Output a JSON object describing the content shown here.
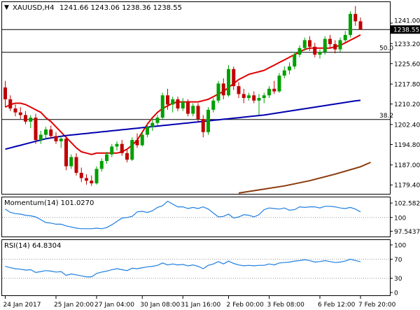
{
  "header": {
    "symbol": "XAUUSD,H4",
    "ohlc": "1241.66 1243.06 1238.36 1238.55"
  },
  "colors": {
    "bull": "#00a000",
    "bear": "#c00000",
    "sma_fast": "#e00000",
    "sma_mid": "#0000b0",
    "sma_slow": "#8b3a0a",
    "indicator": "#1e7fe0",
    "level": "#000000",
    "grid": "#d8d8d8"
  },
  "chart_data": [
    {
      "type": "candlestick",
      "panel": "price",
      "ylim": [
        1176,
        1249
      ],
      "y_ticks": [
        1241.0,
        1233.2,
        1225.6,
        1217.8,
        1210.2,
        1202.4,
        1194.8,
        1187.0,
        1179.4
      ],
      "y_tick_labels": [
        "1241.00",
        "1233.20",
        "1225.60",
        "1217.80",
        "1210.20",
        "1202.40",
        "1194.80",
        "1187.00",
        "1179.40"
      ],
      "current_price": "1238.55",
      "levels": [
        {
          "value": 1238.55,
          "label": ""
        },
        {
          "value": 1229.9,
          "label": "50.0"
        },
        {
          "value": 1204.3,
          "label": "38.2"
        }
      ],
      "x_labels": [
        "24 Jan 2017",
        "25 Jan 20:00",
        "27 Jan 04:00",
        "30 Jan 08:00",
        "31 Jan 16:00",
        "2 Feb 00:00",
        "3 Feb 08:00",
        "6 Feb 12:00",
        "7 Feb 20:00"
      ],
      "x_label_bars": [
        0,
        10,
        18,
        27,
        35,
        44,
        52,
        62,
        70
      ],
      "candles": [
        [
          1216.5,
          1219.0,
          1209.0,
          1212.0
        ],
        [
          1212.0,
          1213.5,
          1207.5,
          1208.5
        ],
        [
          1208.5,
          1210.0,
          1205.5,
          1207.0
        ],
        [
          1207.0,
          1209.0,
          1204.5,
          1206.0
        ],
        [
          1206.0,
          1207.5,
          1202.5,
          1203.5
        ],
        [
          1203.5,
          1206.0,
          1201.0,
          1205.0
        ],
        [
          1205.0,
          1206.5,
          1195.0,
          1196.5
        ],
        [
          1196.5,
          1200.0,
          1195.0,
          1198.5
        ],
        [
          1198.5,
          1201.5,
          1197.0,
          1200.5
        ],
        [
          1200.5,
          1202.0,
          1197.0,
          1198.0
        ],
        [
          1198.0,
          1199.5,
          1195.0,
          1196.0
        ],
        [
          1196.0,
          1198.0,
          1193.5,
          1197.0
        ],
        [
          1197.0,
          1197.5,
          1185.0,
          1186.5
        ],
        [
          1186.5,
          1191.0,
          1185.5,
          1190.0
        ],
        [
          1190.0,
          1191.5,
          1183.0,
          1184.0
        ],
        [
          1184.0,
          1186.0,
          1180.5,
          1182.0
        ],
        [
          1182.0,
          1183.5,
          1179.5,
          1181.0
        ],
        [
          1181.0,
          1183.0,
          1179.0,
          1180.0
        ],
        [
          1180.0,
          1186.5,
          1179.5,
          1185.5
        ],
        [
          1185.5,
          1189.5,
          1184.5,
          1188.5
        ],
        [
          1188.5,
          1192.0,
          1187.5,
          1191.0
        ],
        [
          1191.0,
          1195.0,
          1190.0,
          1194.0
        ],
        [
          1194.0,
          1196.0,
          1192.5,
          1195.0
        ],
        [
          1195.0,
          1196.5,
          1190.5,
          1191.5
        ],
        [
          1191.5,
          1193.0,
          1188.0,
          1189.0
        ],
        [
          1189.0,
          1197.5,
          1188.5,
          1196.5
        ],
        [
          1196.5,
          1199.0,
          1193.5,
          1194.5
        ],
        [
          1194.5,
          1199.5,
          1194.0,
          1198.5
        ],
        [
          1198.5,
          1203.0,
          1197.5,
          1201.5
        ],
        [
          1201.5,
          1204.5,
          1200.0,
          1203.0
        ],
        [
          1203.0,
          1206.0,
          1202.0,
          1205.0
        ],
        [
          1205.0,
          1214.5,
          1204.5,
          1213.5
        ],
        [
          1213.5,
          1216.0,
          1208.0,
          1210.0
        ],
        [
          1210.0,
          1213.0,
          1207.0,
          1212.0
        ],
        [
          1212.0,
          1213.0,
          1207.5,
          1208.5
        ],
        [
          1208.5,
          1212.5,
          1207.5,
          1211.0
        ],
        [
          1211.0,
          1212.0,
          1205.5,
          1206.5
        ],
        [
          1206.5,
          1210.5,
          1205.5,
          1209.5
        ],
        [
          1209.5,
          1210.5,
          1203.5,
          1204.5
        ],
        [
          1204.5,
          1206.0,
          1197.5,
          1199.5
        ],
        [
          1199.5,
          1209.0,
          1198.5,
          1208.0
        ],
        [
          1208.0,
          1212.5,
          1207.0,
          1211.5
        ],
        [
          1211.5,
          1219.0,
          1210.5,
          1218.0
        ],
        [
          1218.0,
          1220.0,
          1212.0,
          1213.5
        ],
        [
          1213.5,
          1225.0,
          1213.0,
          1223.5
        ],
        [
          1223.5,
          1224.5,
          1215.5,
          1217.0
        ],
        [
          1217.0,
          1218.5,
          1212.5,
          1214.0
        ],
        [
          1214.0,
          1216.0,
          1210.5,
          1212.5
        ],
        [
          1212.5,
          1214.5,
          1211.5,
          1213.5
        ],
        [
          1213.5,
          1215.0,
          1210.5,
          1211.5
        ],
        [
          1211.5,
          1214.0,
          1206.0,
          1212.5
        ],
        [
          1212.5,
          1214.5,
          1210.5,
          1213.5
        ],
        [
          1213.5,
          1217.0,
          1212.5,
          1216.0
        ],
        [
          1216.0,
          1219.0,
          1214.0,
          1215.0
        ],
        [
          1215.0,
          1222.0,
          1214.5,
          1221.0
        ],
        [
          1221.0,
          1224.5,
          1220.0,
          1223.0
        ],
        [
          1223.0,
          1226.0,
          1221.5,
          1224.5
        ],
        [
          1224.5,
          1230.0,
          1223.5,
          1229.0
        ],
        [
          1229.0,
          1232.5,
          1228.0,
          1231.5
        ],
        [
          1231.5,
          1235.5,
          1230.5,
          1234.5
        ],
        [
          1234.5,
          1236.0,
          1230.5,
          1232.0
        ],
        [
          1232.0,
          1233.5,
          1228.0,
          1229.0
        ],
        [
          1229.0,
          1231.0,
          1227.5,
          1230.0
        ],
        [
          1230.0,
          1236.0,
          1229.0,
          1235.0
        ],
        [
          1235.0,
          1236.5,
          1231.5,
          1233.0
        ],
        [
          1233.0,
          1234.5,
          1229.5,
          1231.0
        ],
        [
          1231.0,
          1235.5,
          1230.0,
          1234.5
        ],
        [
          1234.5,
          1238.0,
          1233.5,
          1236.5
        ],
        [
          1236.5,
          1245.5,
          1235.5,
          1244.5
        ],
        [
          1244.5,
          1247.5,
          1240.0,
          1241.7
        ],
        [
          1241.7,
          1243.1,
          1238.4,
          1238.55
        ]
      ],
      "moving_averages": [
        {
          "role": "sma_fast",
          "values": [
            1209,
            1210,
            1210.5,
            1210.5,
            1210,
            1209,
            1208,
            1207,
            1205,
            1203.5,
            1201.5,
            1199.5,
            1197.5,
            1195.5,
            1193.5,
            1192,
            1191.5,
            1191,
            1191.5,
            1191.5,
            1191.5,
            1191.5,
            1191.5,
            1192,
            1193,
            1194.5,
            1196.5,
            1199.5,
            1202.5,
            1205,
            1207,
            1208.5,
            1209.5,
            1210.5,
            1211,
            1211,
            1211,
            1211,
            1211,
            1211.5,
            1212,
            1213,
            1214,
            1215,
            1216.5,
            1218,
            1219.5,
            1220.5,
            1221.5,
            1222,
            1222.5,
            1223,
            1224,
            1225,
            1226,
            1227,
            1228,
            1229,
            1230,
            1231,
            1231.5,
            1231.5,
            1231.5,
            1231.5,
            1231.5,
            1232,
            1232.5,
            1233.5,
            1234.5,
            1235.5,
            1236.5
          ]
        },
        {
          "role": "sma_mid",
          "values": [
            1193,
            1193.5,
            1194,
            1194.5,
            1195,
            1195.5,
            1196,
            1196.5,
            1197,
            1197.3,
            1197.6,
            1197.9,
            1198.2,
            1198.4,
            1198.6,
            1198.8,
            1199,
            1199.2,
            1199.4,
            1199.6,
            1199.8,
            1200,
            1200.2,
            1200.4,
            1200.6,
            1200.8,
            1201,
            1201.2,
            1201.4,
            1201.6,
            1201.8,
            1202,
            1202.2,
            1202.4,
            1202.6,
            1202.8,
            1203,
            1203.2,
            1203.4,
            1203.6,
            1203.8,
            1204,
            1204.2,
            1204.4,
            1204.6,
            1204.8,
            1205,
            1205.2,
            1205.4,
            1205.6,
            1205.8,
            1206,
            1206.3,
            1206.6,
            1206.9,
            1207.2,
            1207.5,
            1207.8,
            1208.1,
            1208.4,
            1208.7,
            1209,
            1209.3,
            1209.6,
            1209.9,
            1210.2,
            1210.5,
            1210.8,
            1211.1,
            1211.4,
            1211.6
          ]
        },
        {
          "role": "sma_slow",
          "points": [
            [
              46,
              1176.3
            ],
            [
              50,
              1177.5
            ],
            [
              55,
              1179
            ],
            [
              60,
              1181
            ],
            [
              65,
              1183.5
            ],
            [
              70,
              1186.3
            ],
            [
              72,
              1188
            ]
          ]
        }
      ]
    },
    {
      "type": "line",
      "panel": "momentum",
      "label": "Momentum(14) 101.0270",
      "ylim": [
        96.6,
        103.6
      ],
      "y_ticks": [
        102.5828,
        100,
        97.5437
      ],
      "y_tick_labels": [
        "102.5828",
        "100",
        "97.5437"
      ],
      "values": [
        101.5,
        100.9,
        100.7,
        100.6,
        100.4,
        100.3,
        100.1,
        99.6,
        99.1,
        99.0,
        98.8,
        98.8,
        98.5,
        98.3,
        98.1,
        98.0,
        98.0,
        98.0,
        98.1,
        98.0,
        98.2,
        98.7,
        99.3,
        99.9,
        100.0,
        100.2,
        101.0,
        101.1,
        100.9,
        101.2,
        101.8,
        102.1,
        102.9,
        102.4,
        101.9,
        101.9,
        101.6,
        101.8,
        101.6,
        101.9,
        101.5,
        100.8,
        100.1,
        100.2,
        100.6,
        99.9,
        100.1,
        100.5,
        100.4,
        100.1,
        100.5,
        101.4,
        101.7,
        101.6,
        101.5,
        101.7,
        101.3,
        101.4,
        101.9,
        101.8,
        101.9,
        101.9,
        101.7,
        102.0,
        102.0,
        101.9,
        101.7,
        101.6,
        101.8,
        101.5,
        101.0
      ]
    },
    {
      "type": "line",
      "panel": "rsi",
      "label": "RSI(14) 64.8304",
      "ylim": [
        0,
        100
      ],
      "y_ticks": [
        100,
        70,
        30,
        0
      ],
      "y_tick_labels": [
        "100",
        "70",
        "30",
        "0"
      ],
      "levels": [
        70,
        30
      ],
      "values": [
        55,
        52,
        50,
        49,
        47,
        48,
        42,
        44,
        46,
        45,
        43,
        44,
        36,
        39,
        37,
        35,
        33,
        33,
        40,
        43,
        45,
        48,
        50,
        48,
        46,
        51,
        50,
        52,
        54,
        55,
        57,
        62,
        58,
        60,
        58,
        59,
        56,
        58,
        55,
        50,
        57,
        60,
        65,
        60,
        66,
        61,
        58,
        56,
        57,
        56,
        57,
        57,
        60,
        58,
        62,
        63,
        64,
        66,
        67,
        69,
        67,
        64,
        65,
        67,
        65,
        63,
        64,
        66,
        70,
        67,
        64.8
      ]
    }
  ]
}
